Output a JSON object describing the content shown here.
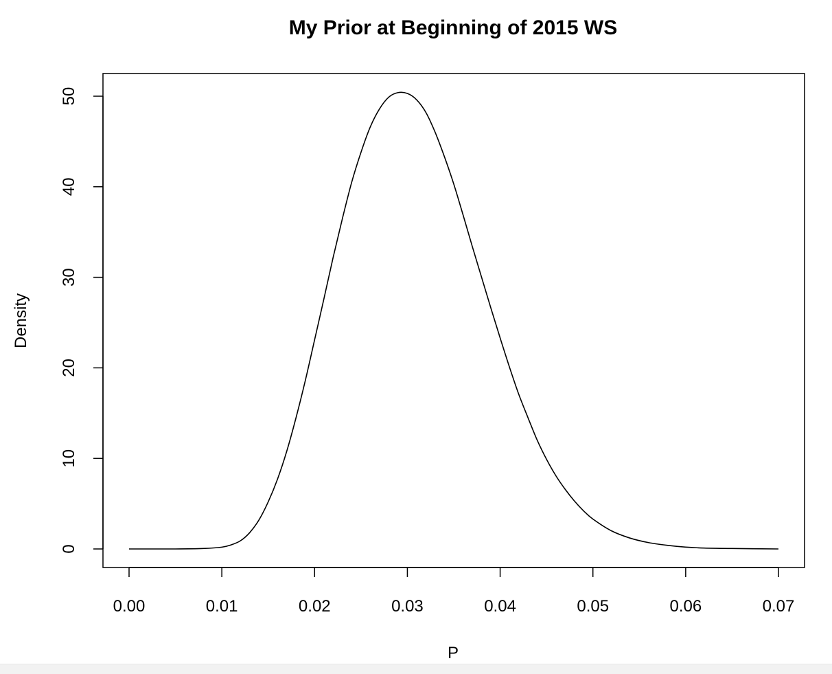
{
  "chart_data": {
    "type": "line",
    "title": "My Prior at Beginning of 2015 WS",
    "xlabel": "P",
    "ylabel": "Density",
    "xlim": [
      0.0,
      0.07
    ],
    "ylim": [
      0,
      52
    ],
    "x_ticks": [
      {
        "value": 0.0,
        "label": "0.00"
      },
      {
        "value": 0.01,
        "label": "0.01"
      },
      {
        "value": 0.02,
        "label": "0.02"
      },
      {
        "value": 0.03,
        "label": "0.03"
      },
      {
        "value": 0.04,
        "label": "0.04"
      },
      {
        "value": 0.05,
        "label": "0.05"
      },
      {
        "value": 0.06,
        "label": "0.06"
      },
      {
        "value": 0.07,
        "label": "0.07"
      }
    ],
    "y_ticks": [
      {
        "value": 0,
        "label": "0"
      },
      {
        "value": 10,
        "label": "10"
      },
      {
        "value": 20,
        "label": "20"
      },
      {
        "value": 30,
        "label": "30"
      },
      {
        "value": 40,
        "label": "40"
      },
      {
        "value": 50,
        "label": "50"
      }
    ],
    "grid": false,
    "line_color": "#000000",
    "series": [
      {
        "x": [
          0.0,
          0.005,
          0.008,
          0.01,
          0.011,
          0.012,
          0.013,
          0.014,
          0.015,
          0.016,
          0.017,
          0.018,
          0.019,
          0.02,
          0.021,
          0.022,
          0.023,
          0.024,
          0.025,
          0.026,
          0.027,
          0.028,
          0.029,
          0.03,
          0.031,
          0.032,
          0.033,
          0.034,
          0.035,
          0.036,
          0.037,
          0.038,
          0.039,
          0.04,
          0.041,
          0.042,
          0.043,
          0.044,
          0.045,
          0.046,
          0.047,
          0.048,
          0.049,
          0.05,
          0.052,
          0.054,
          0.056,
          0.058,
          0.06,
          0.062,
          0.065,
          0.07
        ],
        "values": [
          0.0,
          0.0,
          0.05,
          0.2,
          0.45,
          0.9,
          1.8,
          3.2,
          5.2,
          7.7,
          10.8,
          14.5,
          18.6,
          23.1,
          27.6,
          32.2,
          36.5,
          40.5,
          43.8,
          46.6,
          48.6,
          49.9,
          50.4,
          50.3,
          49.6,
          48.2,
          46.0,
          43.3,
          40.3,
          36.9,
          33.4,
          30.0,
          26.6,
          23.3,
          20.1,
          17.1,
          14.5,
          12.0,
          9.9,
          8.1,
          6.6,
          5.3,
          4.2,
          3.3,
          2.0,
          1.2,
          0.7,
          0.4,
          0.2,
          0.1,
          0.05,
          0.0
        ]
      }
    ]
  }
}
